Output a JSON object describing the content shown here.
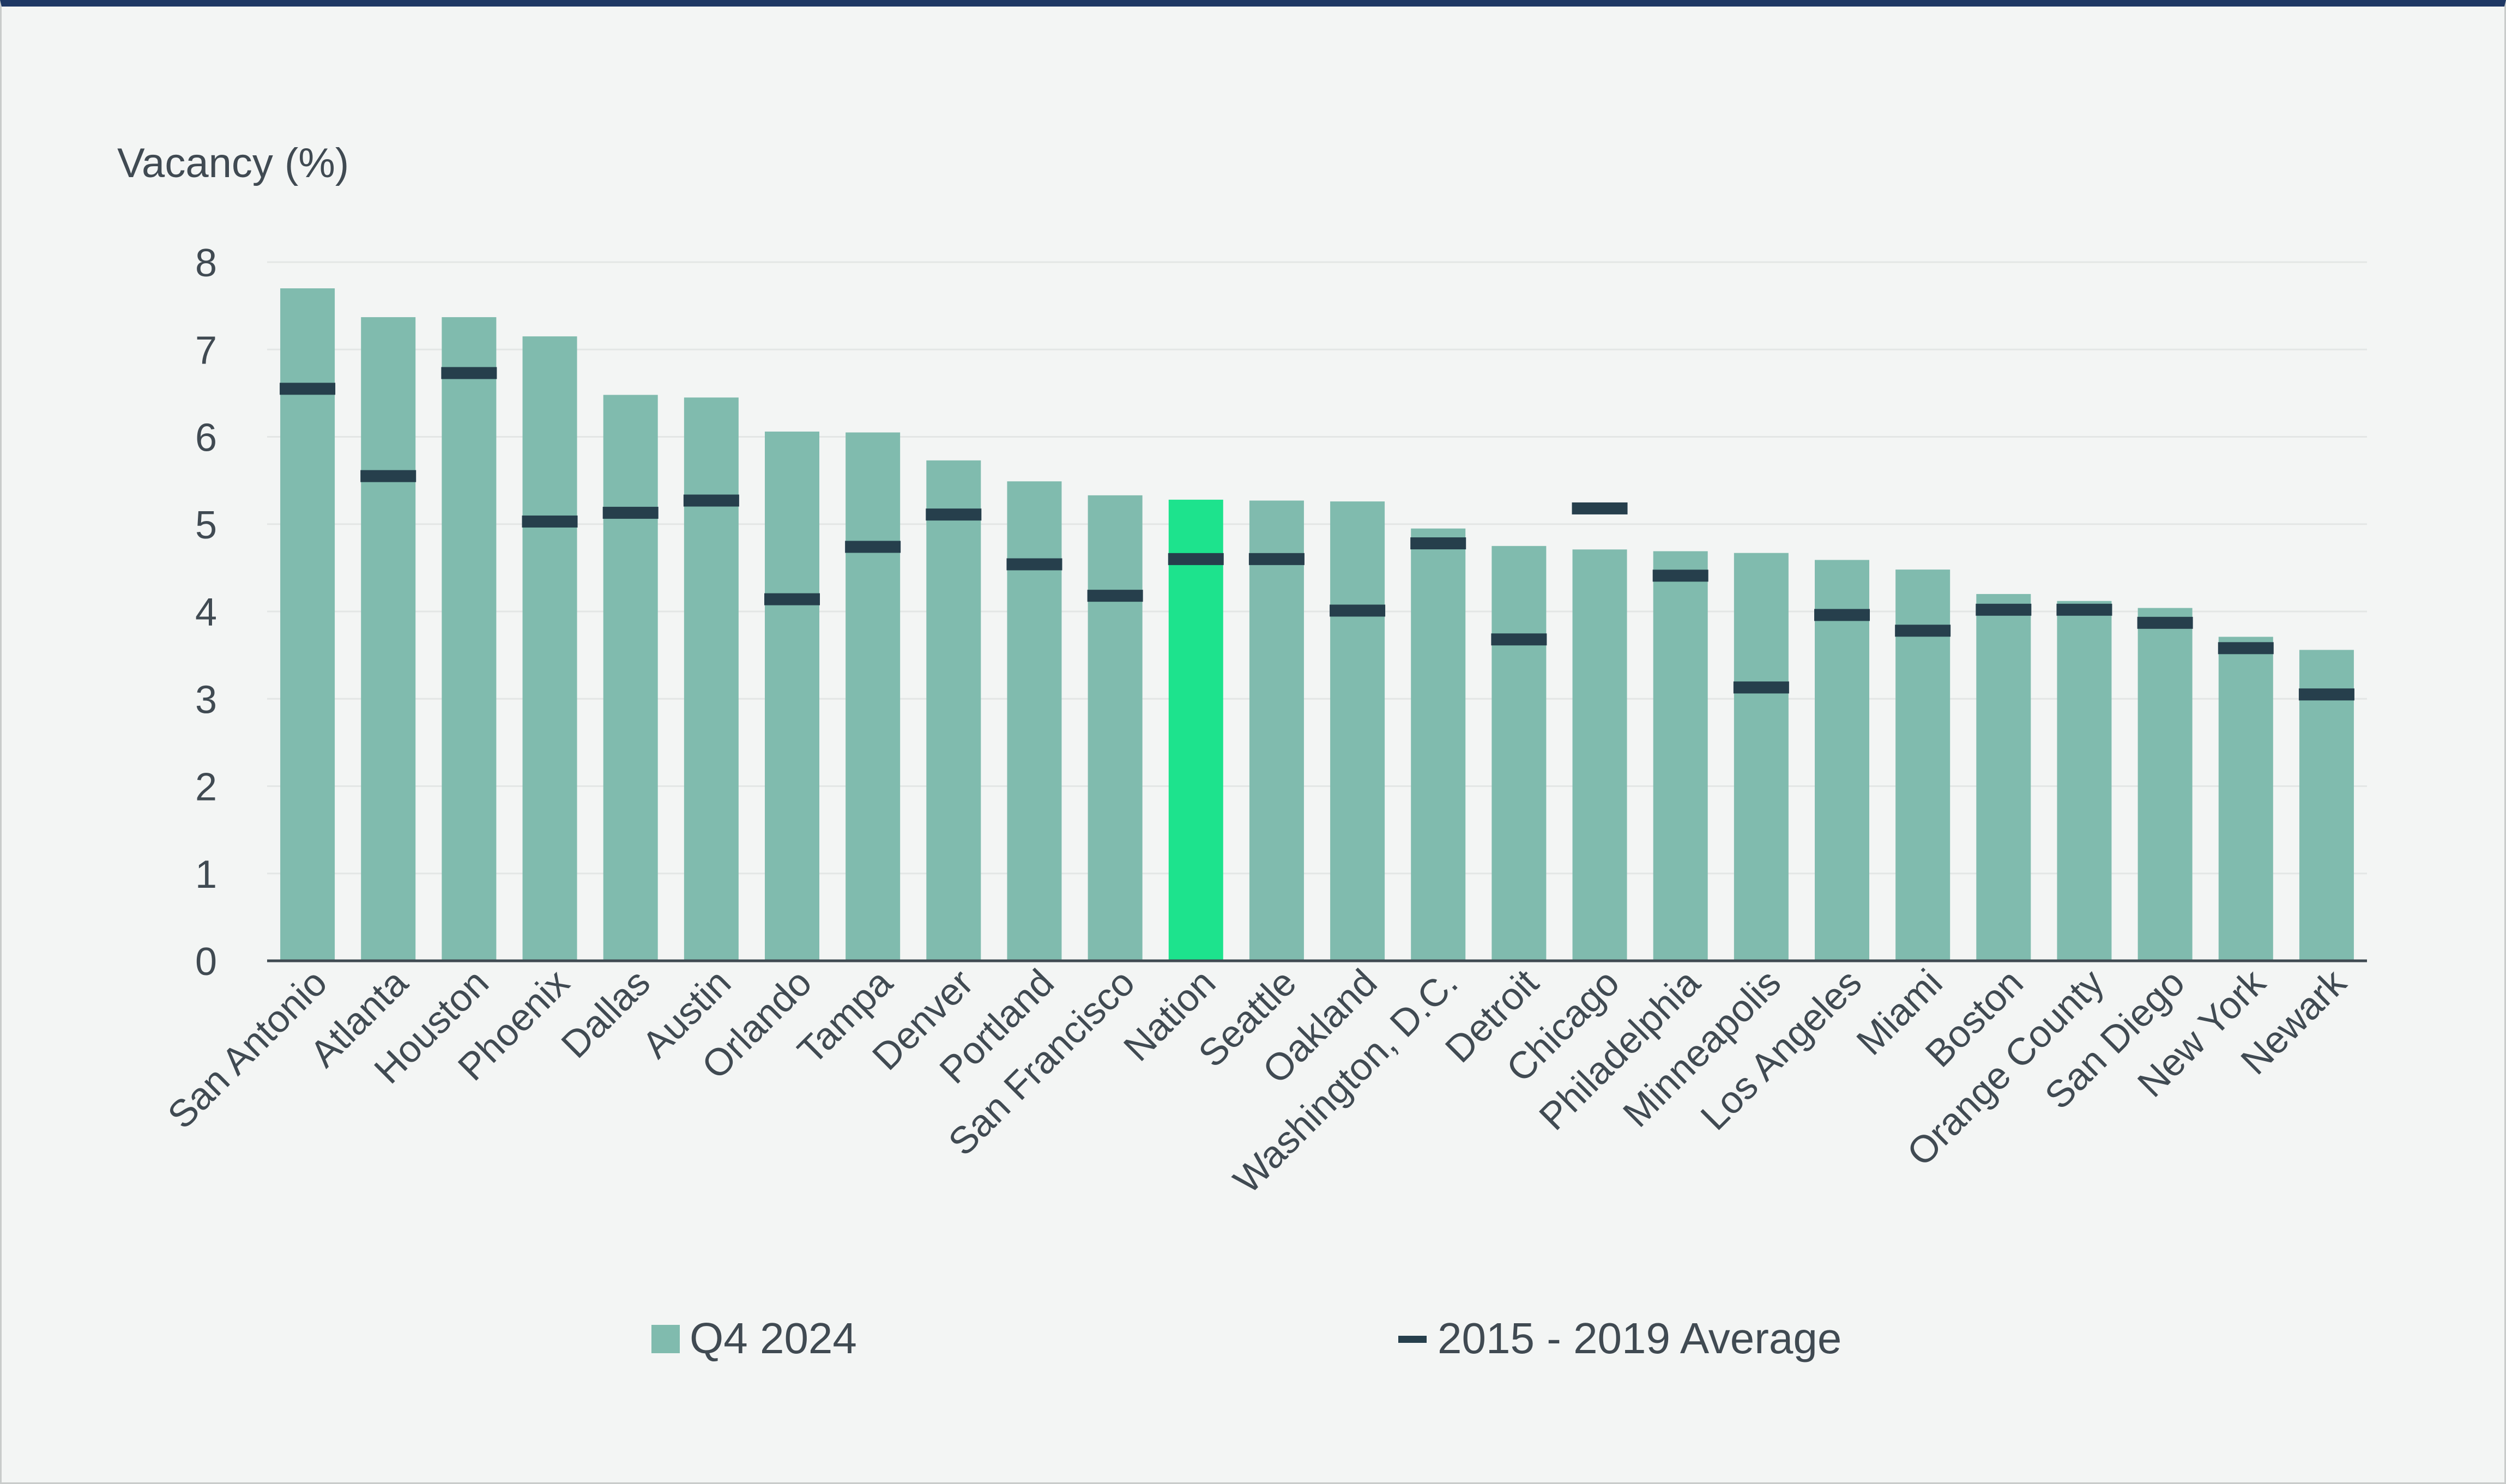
{
  "chart_data": {
    "type": "bar",
    "ylabel": "Vacancy (%)",
    "ylim": [
      0,
      8
    ],
    "yticks": [
      0,
      1,
      2,
      3,
      4,
      5,
      6,
      7,
      8
    ],
    "grid": true,
    "legend_position": "bottom",
    "categories": [
      "San Antonio",
      "Atlanta",
      "Houston",
      "Phoenix",
      "Dallas",
      "Austin",
      "Orlando",
      "Tampa",
      "Denver",
      "Portland",
      "San Francisco",
      "Nation",
      "Seattle",
      "Oakland",
      "Washington, D.C.",
      "Detroit",
      "Chicago",
      "Philadelphia",
      "Minneapolis",
      "Los Angeles",
      "Miami",
      "Boston",
      "Orange County",
      "San Diego",
      "New York",
      "Newark"
    ],
    "series": [
      {
        "name": "Q4 2024",
        "kind": "bar",
        "color": "#80bbae",
        "highlight_category": "Nation",
        "highlight_color": "#1de38d",
        "values": [
          7.7,
          7.37,
          7.37,
          7.15,
          6.48,
          6.45,
          6.06,
          6.05,
          5.73,
          5.49,
          5.33,
          5.28,
          5.27,
          5.26,
          4.95,
          4.75,
          4.71,
          4.69,
          4.67,
          4.59,
          4.48,
          4.2,
          4.12,
          4.04,
          3.71,
          3.56
        ]
      },
      {
        "name": "2015 - 2019 Average",
        "kind": "marker",
        "color": "#263f4c",
        "values": [
          6.55,
          5.55,
          6.73,
          5.03,
          5.13,
          5.27,
          4.14,
          4.74,
          5.11,
          4.54,
          4.18,
          4.6,
          4.6,
          4.01,
          4.78,
          3.68,
          5.18,
          4.41,
          3.13,
          3.96,
          3.78,
          4.02,
          4.02,
          3.87,
          3.58,
          3.05
        ]
      }
    ]
  }
}
